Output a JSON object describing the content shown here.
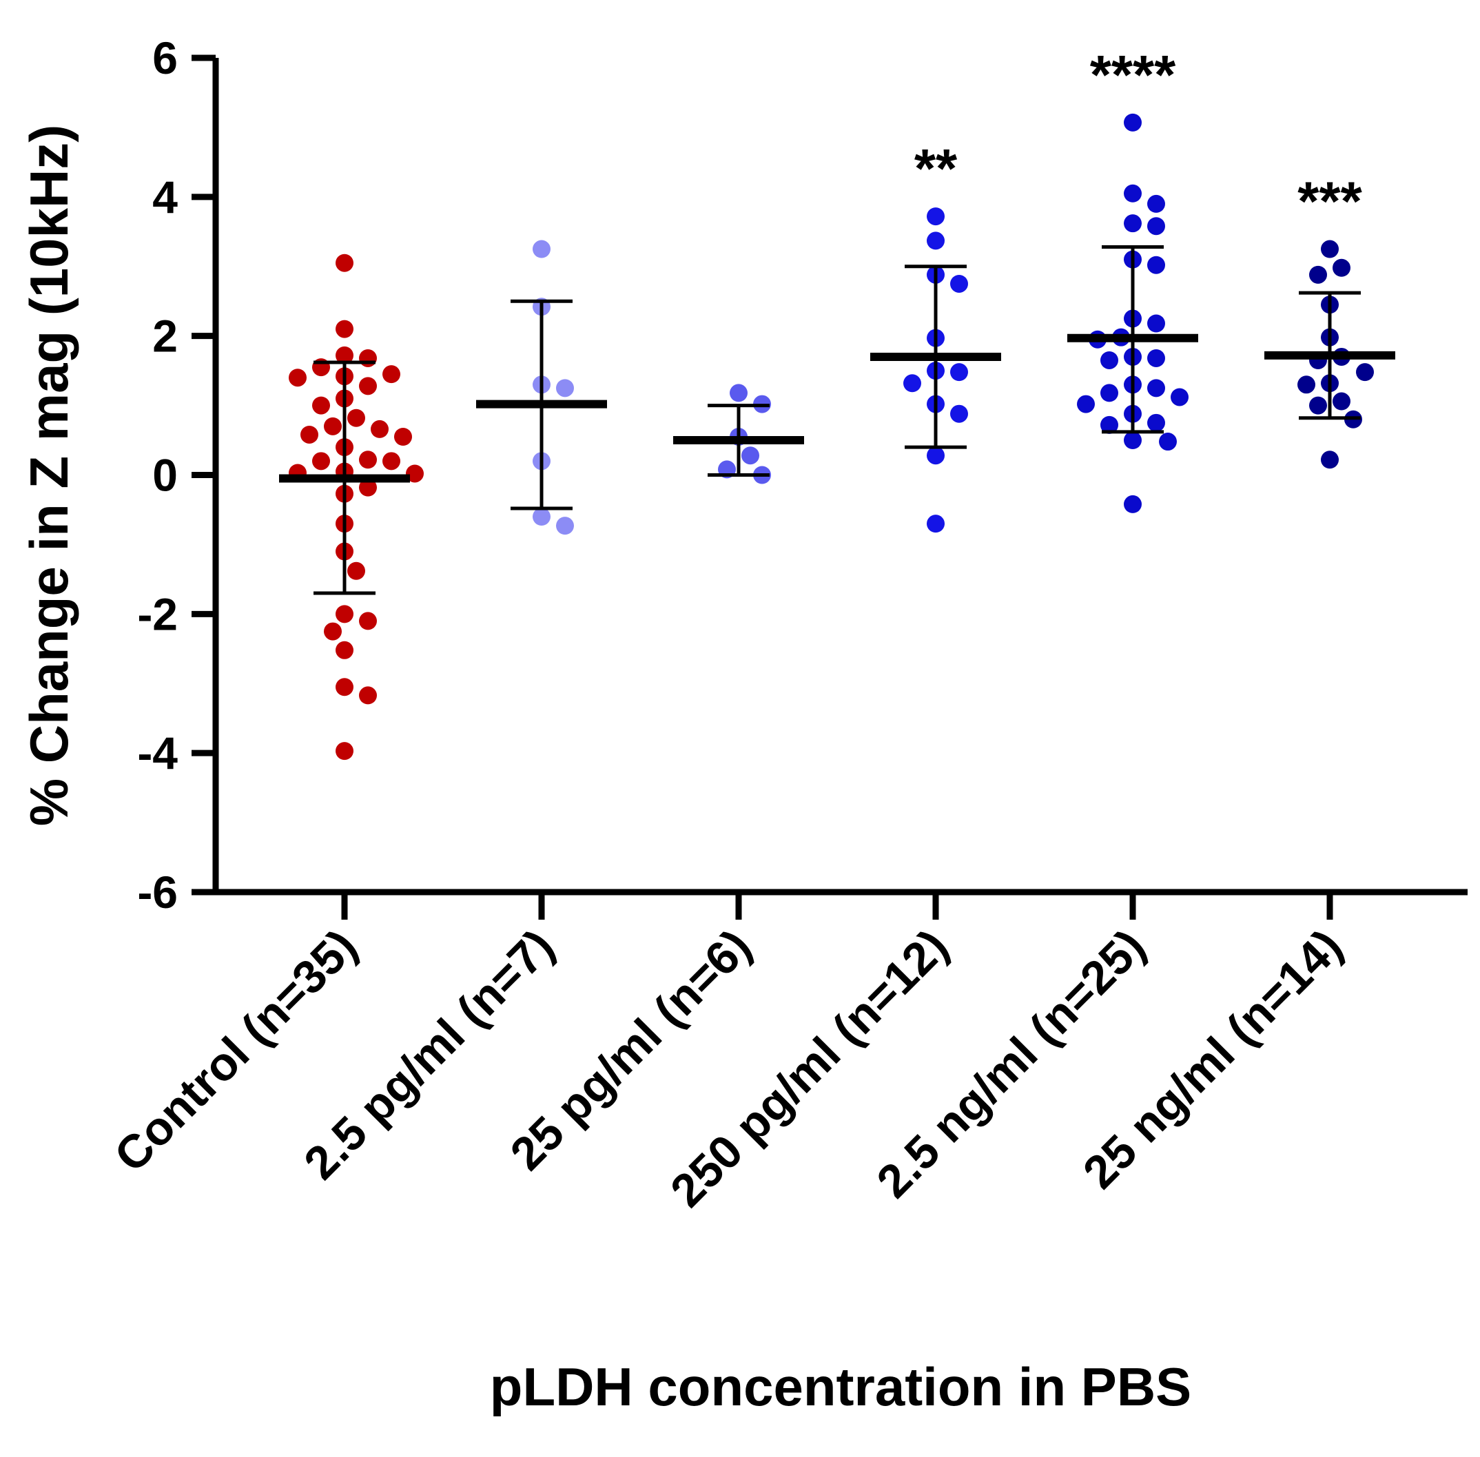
{
  "chart_data": {
    "type": "scatter",
    "subtype": "dot-plot with mean and SD error bars",
    "title": "",
    "xlabel": "pLDH concentration in PBS",
    "ylabel": "% Change in Z mag (10kHz)",
    "ylim": [
      -6,
      6
    ],
    "yticks": [
      "6",
      "4",
      "2",
      "0",
      "-2",
      "-4",
      "-6"
    ],
    "grid": false,
    "groups": [
      {
        "label": "Control (n=35)",
        "color": "#C00000",
        "mean": -0.05,
        "sd_upper": 1.62,
        "sd_lower": -1.7,
        "significance": "",
        "points": [
          3.05,
          2.1,
          1.72,
          1.68,
          1.55,
          1.45,
          1.42,
          1.4,
          1.28,
          1.1,
          1.0,
          0.82,
          0.7,
          0.66,
          0.58,
          0.55,
          0.4,
          0.22,
          0.2,
          0.2,
          0.05,
          0.03,
          0.02,
          -0.18,
          -0.27,
          -0.7,
          -1.1,
          -1.38,
          -2.0,
          -2.1,
          -2.25,
          -2.52,
          -3.05,
          -3.17,
          -3.97
        ]
      },
      {
        "label": "2.5 pg/ml (n=7)",
        "color": "#8C8CF5",
        "mean": 1.02,
        "sd_upper": 2.5,
        "sd_lower": -0.48,
        "significance": "",
        "points": [
          3.25,
          2.42,
          1.3,
          1.25,
          0.2,
          -0.6,
          -0.73
        ]
      },
      {
        "label": "25 pg/ml (n=6)",
        "color": "#5A5AEE",
        "mean": 0.5,
        "sd_upper": 1.0,
        "sd_lower": 0.0,
        "significance": "",
        "points": [
          1.18,
          1.02,
          0.55,
          0.28,
          0.08,
          0.0
        ]
      },
      {
        "label": "250 pg/ml (n=12)",
        "color": "#1414E6",
        "mean": 1.7,
        "sd_upper": 3.0,
        "sd_lower": 0.4,
        "significance": "**",
        "points": [
          3.72,
          3.37,
          2.88,
          2.75,
          1.97,
          1.5,
          1.48,
          1.32,
          1.02,
          0.88,
          0.28,
          -0.7
        ]
      },
      {
        "label": "2.5 ng/ml (n=25)",
        "color": "#0A0ACC",
        "mean": 1.97,
        "sd_upper": 3.28,
        "sd_lower": 0.62,
        "significance": "****",
        "points": [
          5.07,
          4.05,
          3.9,
          3.62,
          3.58,
          3.1,
          3.02,
          2.25,
          2.18,
          1.98,
          1.95,
          1.7,
          1.68,
          1.65,
          1.3,
          1.25,
          1.18,
          1.12,
          1.02,
          0.88,
          0.75,
          0.72,
          0.5,
          0.48,
          -0.42
        ]
      },
      {
        "label": "25 ng/ml (n=14)",
        "color": "#00008C",
        "mean": 1.72,
        "sd_upper": 2.62,
        "sd_lower": 0.82,
        "significance": "***",
        "points": [
          3.25,
          2.98,
          2.88,
          2.45,
          1.98,
          1.7,
          1.65,
          1.48,
          1.32,
          1.3,
          1.06,
          1.0,
          0.8,
          0.22
        ]
      }
    ]
  }
}
